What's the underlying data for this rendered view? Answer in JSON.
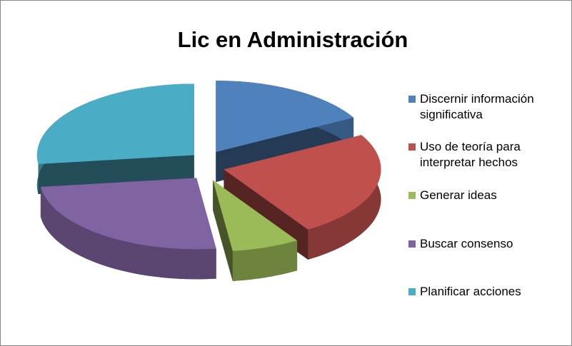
{
  "chart_data": {
    "type": "pie3d",
    "title": "Lic en Administración",
    "categories": [
      "Discernir información significativa",
      "Uso de teoría para interpretar hechos",
      "Generar ideas",
      "Buscar consenso",
      "Planificar acciones"
    ],
    "values": [
      17,
      24,
      7,
      25,
      27
    ],
    "colors": [
      "#4f81bd",
      "#c0504d",
      "#9bbb59",
      "#8064a2",
      "#4bacc6"
    ],
    "legend": "right"
  }
}
